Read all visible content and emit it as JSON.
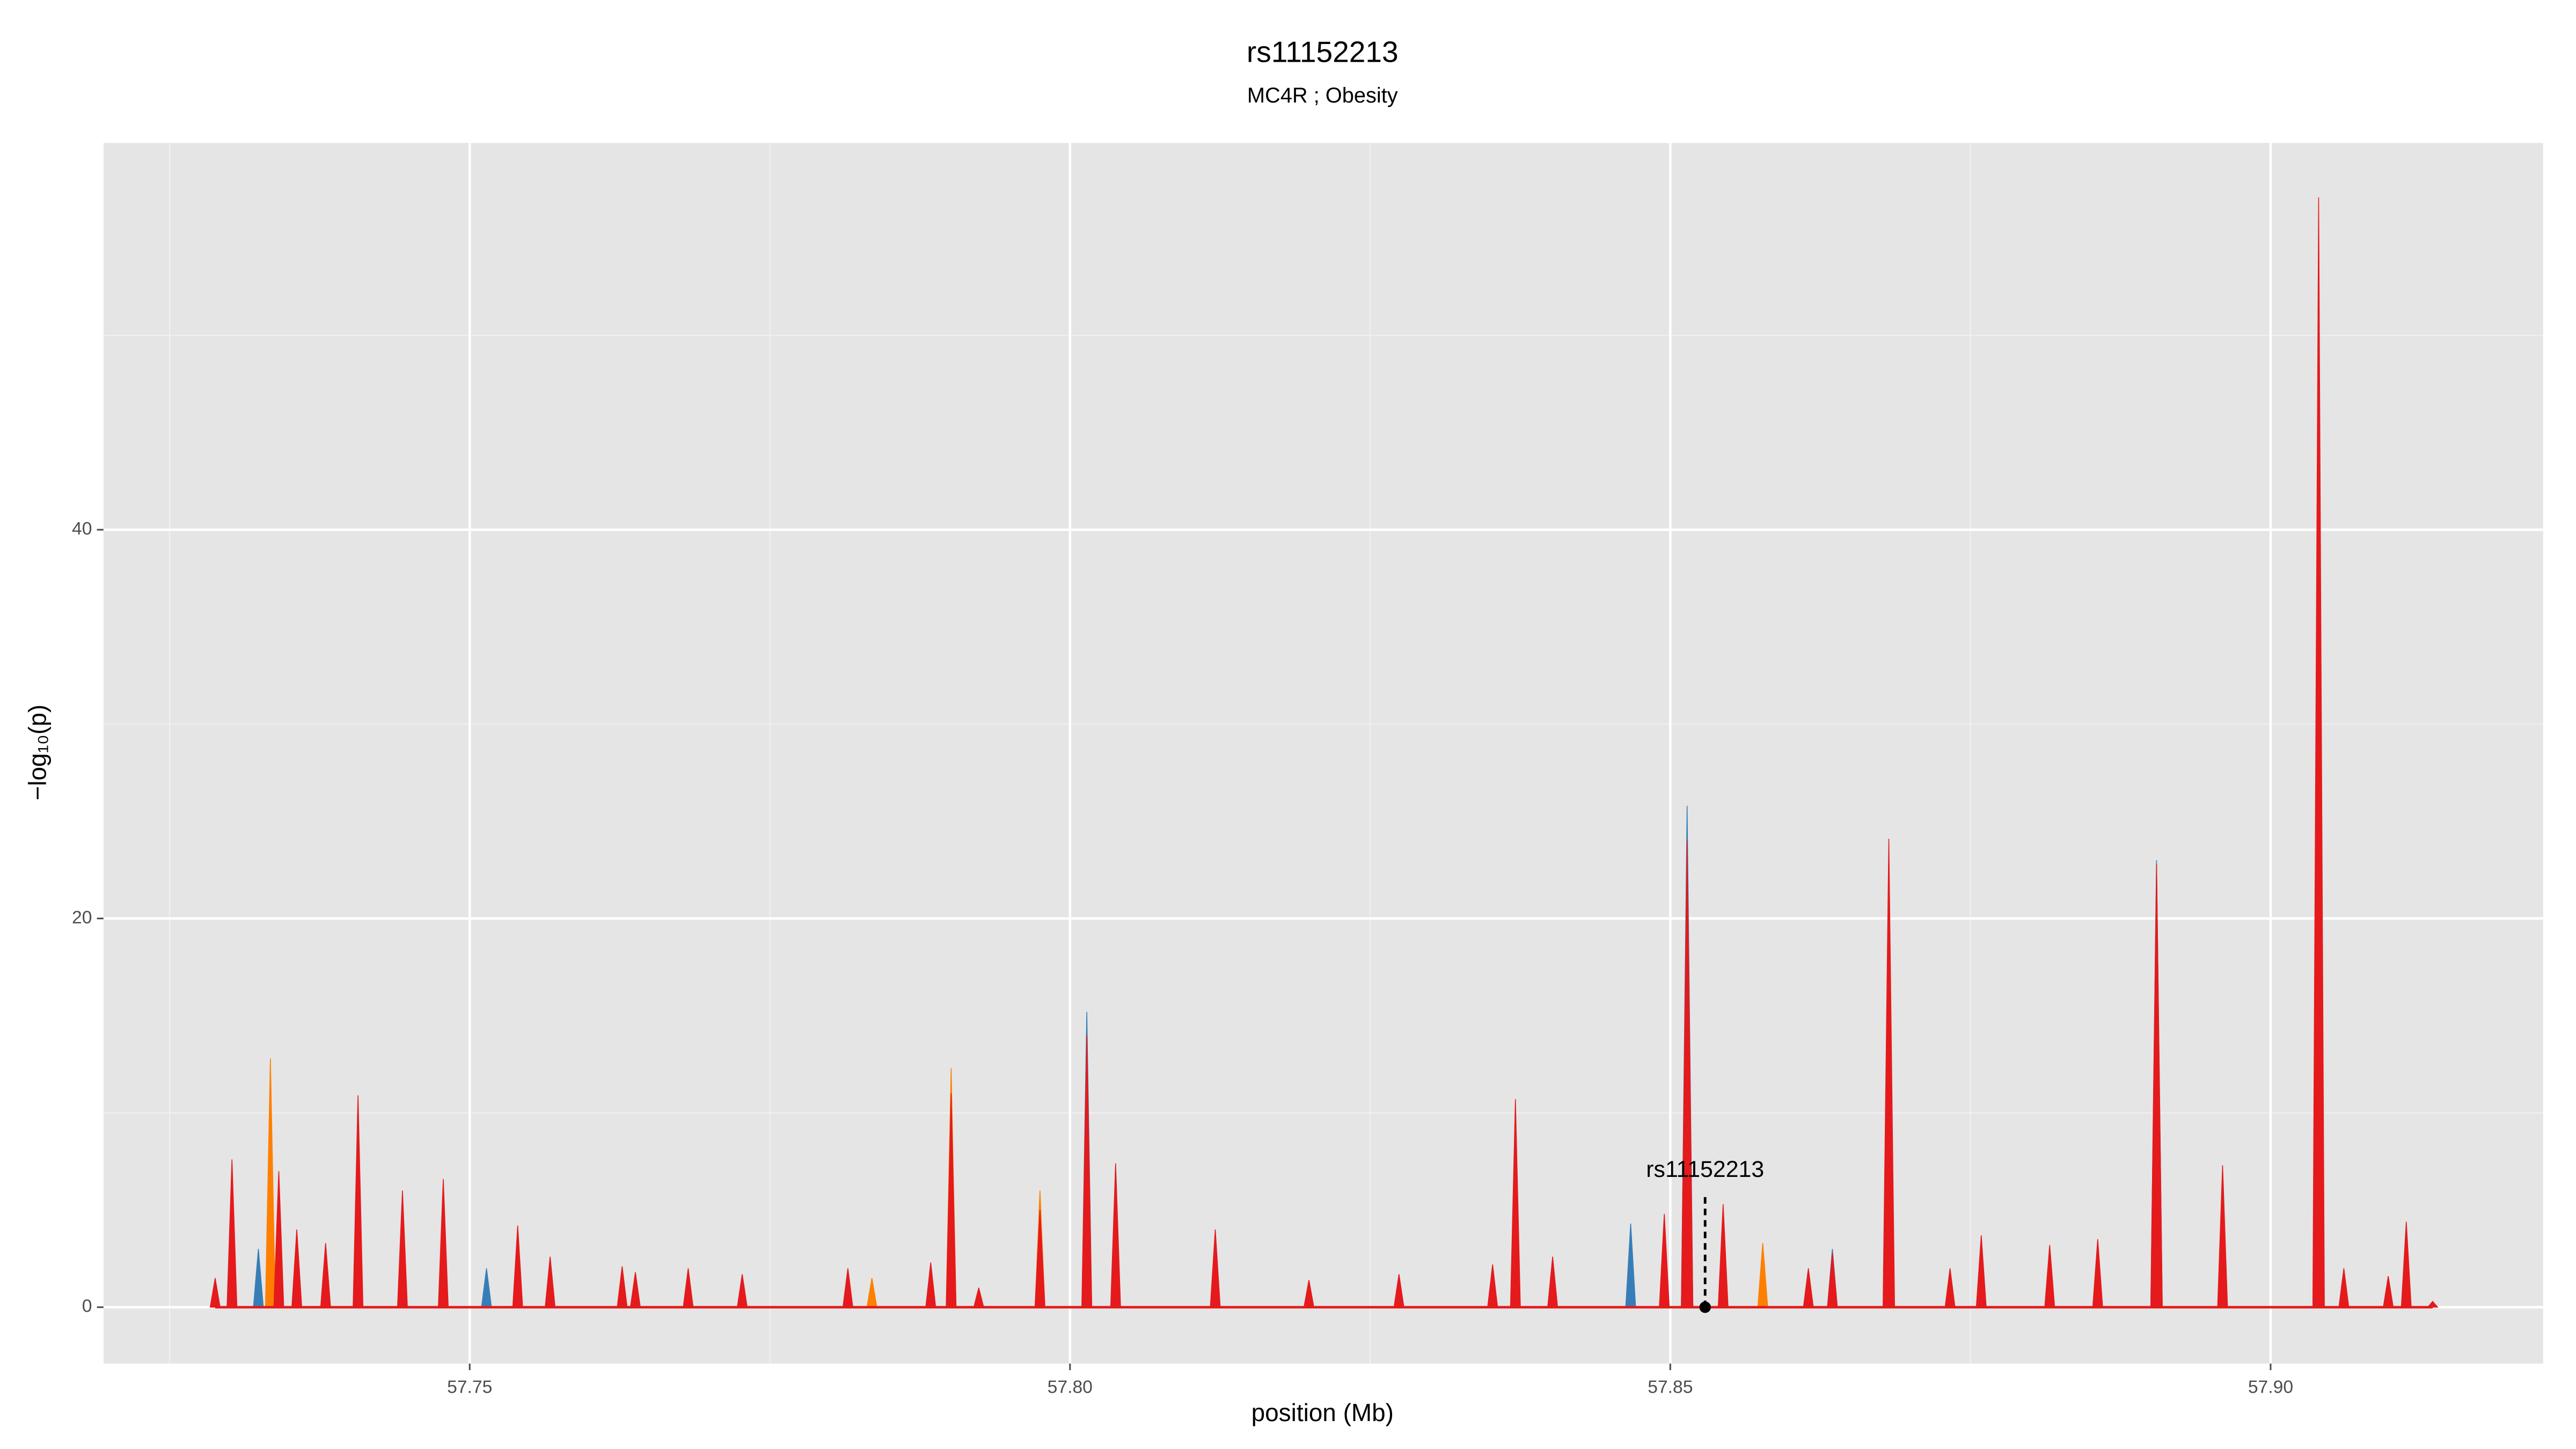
{
  "chart_data": {
    "type": "area",
    "title": "rs11152213",
    "subtitle": "MC4R ; Obesity",
    "xlabel": "position (Mb)",
    "ylabel": "−log₁₀(p)",
    "xlim": [
      57.7195,
      57.9227
    ],
    "ylim": [
      -2.9,
      59.9
    ],
    "xticks": [
      57.75,
      {
        "value": 57.8,
        "label": "57.80"
      },
      57.85,
      {
        "value": 57.9,
        "label": "57.90"
      }
    ],
    "yticks": [
      0,
      20,
      40
    ],
    "xminor": [
      57.725,
      57.775,
      57.825,
      57.875
    ],
    "yminor": [
      10,
      30,
      50
    ],
    "grid": true,
    "series": [
      {
        "color": "#377eb8",
        "x": [
          57.7324,
          57.7514,
          57.8014,
          57.8467,
          57.8514,
          57.8635,
          57.8905
        ],
        "values": [
          3,
          2,
          15.2,
          4.3,
          25.8,
          3,
          23
        ]
      },
      {
        "color": "#ff7f00",
        "x": [
          57.7334,
          57.7835,
          57.7901,
          57.7975,
          57.8577
        ],
        "values": [
          12.8,
          1.5,
          12.3,
          6,
          3.3
        ]
      },
      {
        "color": "#e41a1c",
        "x": [
          57.7288,
          57.7302,
          57.7341,
          57.7356,
          57.738,
          57.7407,
          57.7444,
          57.7478,
          57.754,
          57.7567,
          57.7627,
          57.7638,
          57.7682,
          57.7727,
          57.7815,
          57.7884,
          57.7901,
          57.7924,
          57.7975,
          57.8014,
          57.8038,
          57.8121,
          57.8199,
          57.8274,
          57.8352,
          57.8371,
          57.8402,
          57.8495,
          57.8514,
          57.8544,
          57.8615,
          57.8635,
          57.8682,
          57.8733,
          57.8759,
          57.8816,
          57.8856,
          57.8905,
          57.896,
          57.904,
          57.9061,
          57.9098,
          57.9113,
          57.9135
        ],
        "values": [
          1.5,
          7.6,
          7,
          4,
          3.3,
          10.9,
          6,
          6.6,
          4.2,
          2.6,
          2.1,
          1.8,
          2,
          1.7,
          2,
          2.3,
          11,
          1,
          5,
          14,
          7.4,
          4,
          1.4,
          1.7,
          2.2,
          10.7,
          2.6,
          4.8,
          24,
          5.3,
          2,
          2.8,
          24.1,
          2,
          3.7,
          3.2,
          3.5,
          22.8,
          7.3,
          57.1,
          2,
          1.6,
          4.4,
          0.3
        ]
      }
    ],
    "annotations": [
      {
        "text": "rs11152213",
        "x": 57.8529,
        "y": 0
      }
    ]
  }
}
